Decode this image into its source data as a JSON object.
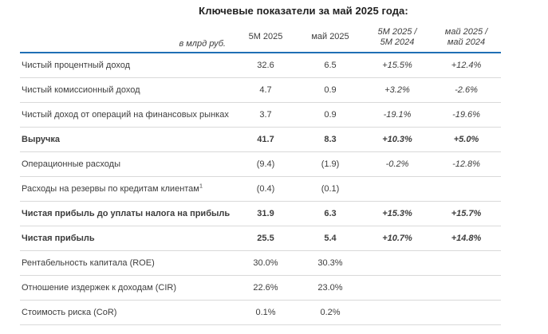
{
  "title": "Ключевые показатели за май 2025 года:",
  "table": {
    "unit_label": "в млрд руб.",
    "columns": [
      "5М 2025",
      "май 2025",
      "5М 2025 /\n5М 2024",
      "май 2025 /\nмай 2024"
    ],
    "rows": [
      {
        "label": "Чистый процентный доход",
        "values": [
          "32.6",
          "6.5",
          "+15.5%",
          "+12.4%"
        ],
        "bold": false
      },
      {
        "label": "Чистый комиссионный доход",
        "values": [
          "4.7",
          "0.9",
          "+3.2%",
          "-2.6%"
        ],
        "bold": false
      },
      {
        "label": "Чистый доход от операций на финансовых рынках",
        "values": [
          "3.7",
          "0.9",
          "-19.1%",
          "-19.6%"
        ],
        "bold": false
      },
      {
        "label": "Выручка",
        "values": [
          "41.7",
          "8.3",
          "+10.3%",
          "+5.0%"
        ],
        "bold": true
      },
      {
        "label": "Операционные расходы",
        "values": [
          "(9.4)",
          "(1.9)",
          "-0.2%",
          "-12.8%"
        ],
        "bold": false
      },
      {
        "label": "Расходы на резервы по кредитам клиентам",
        "footnote_marker": "1",
        "values": [
          "(0.4)",
          "(0.1)",
          "",
          ""
        ],
        "bold": false
      },
      {
        "label": "Чистая прибыль до уплаты налога на прибыль",
        "values": [
          "31.9",
          "6.3",
          "+15.3%",
          "+15.7%"
        ],
        "bold": true
      },
      {
        "label": "Чистая прибыль",
        "values": [
          "25.5",
          "5.4",
          "+10.7%",
          "+14.8%"
        ],
        "bold": true
      },
      {
        "label": "Рентабельность капитала (ROE)",
        "values": [
          "30.0%",
          "30.3%",
          "",
          ""
        ],
        "bold": false
      },
      {
        "label": "Отношение издержек к доходам (CIR)",
        "values": [
          "22.6%",
          "23.0%",
          "",
          ""
        ],
        "bold": false
      },
      {
        "label": "Стоимость риска (CoR)",
        "values": [
          "0.1%",
          "0.2%",
          "",
          ""
        ],
        "bold": false
      }
    ]
  },
  "colors": {
    "accent_rule_blue": "#1F6FB5",
    "row_separator_gray": "#D9D9D9",
    "text_dark": "#3D3D3D"
  }
}
